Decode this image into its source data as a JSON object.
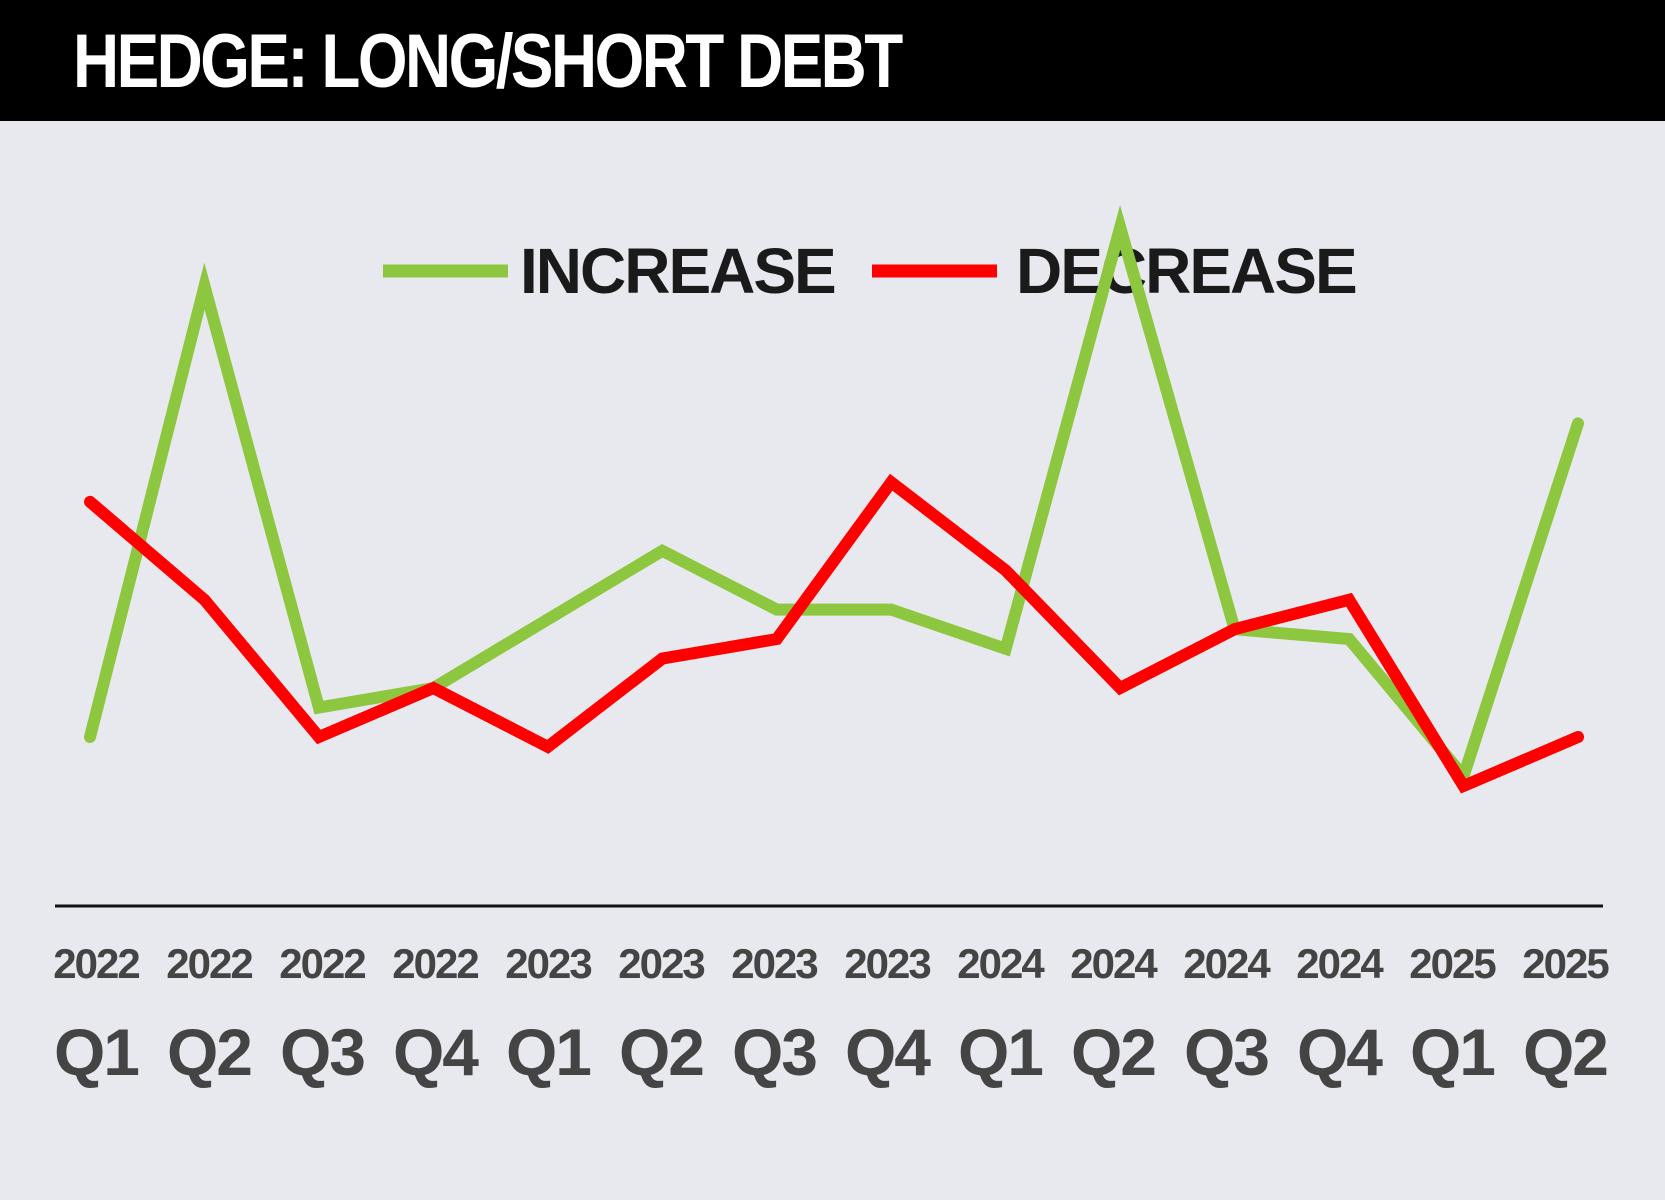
{
  "title": "HEDGE: LONG/SHORT DEBT",
  "colors": {
    "background": "#e8e9ee",
    "header": "#000000",
    "increase": "#8dc63f",
    "decrease": "#ff0000",
    "axis": "#111111",
    "ticks": "#444444"
  },
  "chart_data": {
    "type": "line",
    "title": "HEDGE: LONG/SHORT DEBT",
    "categories": [
      {
        "year": "2022",
        "quarter": "Q1"
      },
      {
        "year": "2022",
        "quarter": "Q2"
      },
      {
        "year": "2022",
        "quarter": "Q3"
      },
      {
        "year": "2022",
        "quarter": "Q4"
      },
      {
        "year": "2023",
        "quarter": "Q1"
      },
      {
        "year": "2023",
        "quarter": "Q2"
      },
      {
        "year": "2023",
        "quarter": "Q3"
      },
      {
        "year": "2023",
        "quarter": "Q4"
      },
      {
        "year": "2024",
        "quarter": "Q1"
      },
      {
        "year": "2024",
        "quarter": "Q2"
      },
      {
        "year": "2024",
        "quarter": "Q3"
      },
      {
        "year": "2024",
        "quarter": "Q4"
      },
      {
        "year": "2025",
        "quarter": "Q1"
      },
      {
        "year": "2025",
        "quarter": "Q2"
      }
    ],
    "series": [
      {
        "name": "INCREASE",
        "color": "#8dc63f",
        "values": [
          35,
          81,
          38,
          40,
          47,
          54,
          48,
          48,
          44,
          87,
          46,
          45,
          31,
          67
        ]
      },
      {
        "name": "DECREASE",
        "color": "#ff0000",
        "values": [
          59,
          49,
          35,
          40,
          34,
          43,
          45,
          61,
          52,
          40,
          46,
          49,
          30,
          35
        ]
      }
    ],
    "ylim": [
      0,
      100
    ],
    "xlabel": "",
    "ylabel": "",
    "grid": false,
    "legend": "top-center"
  }
}
